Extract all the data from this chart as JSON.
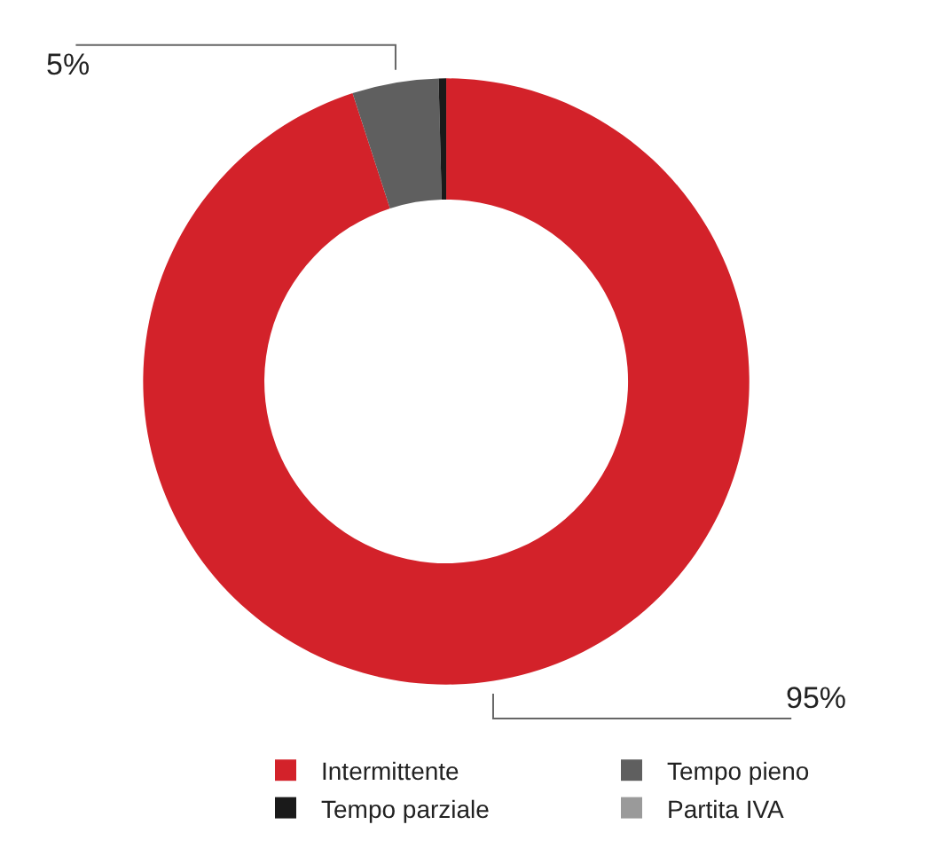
{
  "chart_data": {
    "type": "donut",
    "categories": [
      "Intermittente",
      "Tempo pieno",
      "Tempo parziale",
      "Partita IVA"
    ],
    "values": [
      95,
      4.6,
      0.4,
      0
    ],
    "colors": [
      "#d3222a",
      "#5f5f5f",
      "#1a1a1a",
      "#9a9a9a"
    ],
    "value_labels": [
      "95%",
      "5%",
      null,
      null
    ],
    "legend": "bottom"
  }
}
